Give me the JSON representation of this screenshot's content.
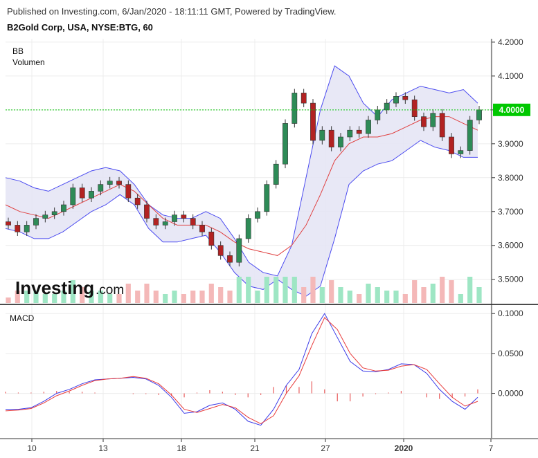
{
  "header": {
    "published": "Published on Investing.com, 6/Jan/2020 - 18:11:11 GMT, Powered by TradingView.",
    "title": "B2Gold Corp, USA, NYSE:BTG, 60"
  },
  "panels": {
    "price_label_bb": "BB",
    "price_label_volume": "Volumen",
    "macd_label": "MACD",
    "logo_text": "Investing",
    "logo_suffix": ".com"
  },
  "colors": {
    "up": "#2e8b57",
    "down": "#b22222",
    "band_line": "#4a4af0",
    "band_fill": "#e6e6f5",
    "basis": "#e04040",
    "vol_up": "#9ee6c4",
    "vol_down": "#f4b8b8",
    "last_price_bg": "#00c800",
    "macd_line": "#3a3ae8",
    "signal_line": "#e83a3a",
    "hist": "#e85a5a",
    "grid": "#ececec"
  },
  "chart_data": [
    {
      "type": "candlestick",
      "panel": "price",
      "y_axis_ticks": [
        "4.2000",
        "4.1000",
        "4.0000",
        "3.9000",
        "3.8000",
        "3.7000",
        "3.6000",
        "3.5000"
      ],
      "ylim": [
        3.43,
        4.21
      ],
      "last_price": "4.0000",
      "x_tick_labels": [
        "10",
        "13",
        "18",
        "21",
        "27",
        "2020",
        "7"
      ],
      "series": [
        {
          "name": "BB",
          "type": "bollinger",
          "upper_approx": [
            3.8,
            3.79,
            3.77,
            3.76,
            3.78,
            3.8,
            3.82,
            3.83,
            3.82,
            3.78,
            3.72,
            3.69,
            3.68,
            3.68,
            3.7,
            3.68,
            3.62,
            3.55,
            3.52,
            3.51,
            3.6,
            3.8,
            4.0,
            4.13,
            4.1,
            4.02,
            3.98,
            4.03,
            4.05,
            4.07,
            4.06,
            4.05,
            4.06,
            4.02
          ],
          "lower_approx": [
            3.65,
            3.64,
            3.62,
            3.62,
            3.64,
            3.67,
            3.7,
            3.72,
            3.75,
            3.72,
            3.65,
            3.61,
            3.61,
            3.62,
            3.63,
            3.58,
            3.52,
            3.48,
            3.47,
            3.5,
            3.47,
            3.45,
            3.48,
            3.62,
            3.78,
            3.82,
            3.84,
            3.85,
            3.88,
            3.91,
            3.89,
            3.88,
            3.86,
            3.86
          ],
          "basis_approx": [
            3.72,
            3.7,
            3.69,
            3.68,
            3.7,
            3.72,
            3.74,
            3.76,
            3.78,
            3.76,
            3.72,
            3.68,
            3.66,
            3.66,
            3.66,
            3.64,
            3.61,
            3.59,
            3.58,
            3.57,
            3.6,
            3.66,
            3.75,
            3.85,
            3.9,
            3.92,
            3.92,
            3.93,
            3.95,
            3.97,
            3.98,
            3.98,
            3.96,
            3.94
          ]
        }
      ],
      "candles_approx_close": [
        3.66,
        3.64,
        3.66,
        3.68,
        3.69,
        3.7,
        3.72,
        3.77,
        3.74,
        3.76,
        3.78,
        3.79,
        3.78,
        3.74,
        3.72,
        3.68,
        3.66,
        3.67,
        3.69,
        3.68,
        3.66,
        3.64,
        3.6,
        3.57,
        3.55,
        3.62,
        3.68,
        3.7,
        3.78,
        3.84,
        3.96,
        4.05,
        4.02,
        3.91,
        3.94,
        3.89,
        3.92,
        3.94,
        3.93,
        3.97,
        4.0,
        4.02,
        4.04,
        4.03,
        3.98,
        3.95,
        3.99,
        3.92,
        3.87,
        3.88,
        3.97,
        4.0
      ],
      "candle_dir": [
        "d",
        "d",
        "u",
        "u",
        "u",
        "u",
        "u",
        "u",
        "d",
        "u",
        "u",
        "u",
        "d",
        "d",
        "d",
        "d",
        "d",
        "u",
        "u",
        "d",
        "d",
        "d",
        "d",
        "d",
        "d",
        "u",
        "u",
        "u",
        "u",
        "u",
        "u",
        "u",
        "d",
        "d",
        "u",
        "d",
        "u",
        "u",
        "d",
        "u",
        "u",
        "u",
        "u",
        "d",
        "d",
        "d",
        "u",
        "d",
        "d",
        "u",
        "u",
        "u"
      ]
    },
    {
      "type": "line",
      "panel": "macd",
      "y_axis_ticks": [
        "0.1000",
        "0.0500",
        "0.0000"
      ],
      "ylim": [
        -0.055,
        0.108
      ],
      "series": [
        {
          "name": "MACD",
          "values": [
            -0.02,
            -0.02,
            -0.018,
            -0.01,
            0.0,
            0.005,
            0.012,
            0.017,
            0.018,
            0.019,
            0.02,
            0.018,
            0.01,
            -0.005,
            -0.025,
            -0.023,
            -0.015,
            -0.012,
            -0.02,
            -0.035,
            -0.04,
            -0.02,
            0.01,
            0.03,
            0.075,
            0.1,
            0.07,
            0.04,
            0.028,
            0.027,
            0.03,
            0.037,
            0.036,
            0.025,
            0.005,
            -0.01,
            -0.02,
            -0.005
          ]
        },
        {
          "name": "Signal",
          "values": [
            -0.022,
            -0.021,
            -0.019,
            -0.012,
            -0.003,
            0.003,
            0.01,
            0.016,
            0.018,
            0.019,
            0.021,
            0.019,
            0.012,
            -0.002,
            -0.02,
            -0.024,
            -0.019,
            -0.014,
            -0.018,
            -0.03,
            -0.038,
            -0.028,
            0.0,
            0.022,
            0.06,
            0.095,
            0.08,
            0.05,
            0.032,
            0.028,
            0.029,
            0.034,
            0.036,
            0.03,
            0.012,
            -0.005,
            -0.016,
            -0.01
          ]
        },
        {
          "name": "Histogram",
          "values": [
            0.002,
            0.001,
            0.001,
            0.002,
            0.003,
            0.002,
            0.002,
            0.001,
            0.0,
            0.0,
            -0.001,
            -0.001,
            -0.002,
            -0.003,
            -0.005,
            0.001,
            0.004,
            0.002,
            -0.002,
            -0.005,
            -0.002,
            0.008,
            0.01,
            0.008,
            0.015,
            0.005,
            -0.01,
            -0.01,
            -0.004,
            -0.001,
            0.001,
            0.003,
            0.0,
            -0.005,
            -0.007,
            -0.005,
            -0.004,
            0.005
          ]
        }
      ]
    }
  ]
}
